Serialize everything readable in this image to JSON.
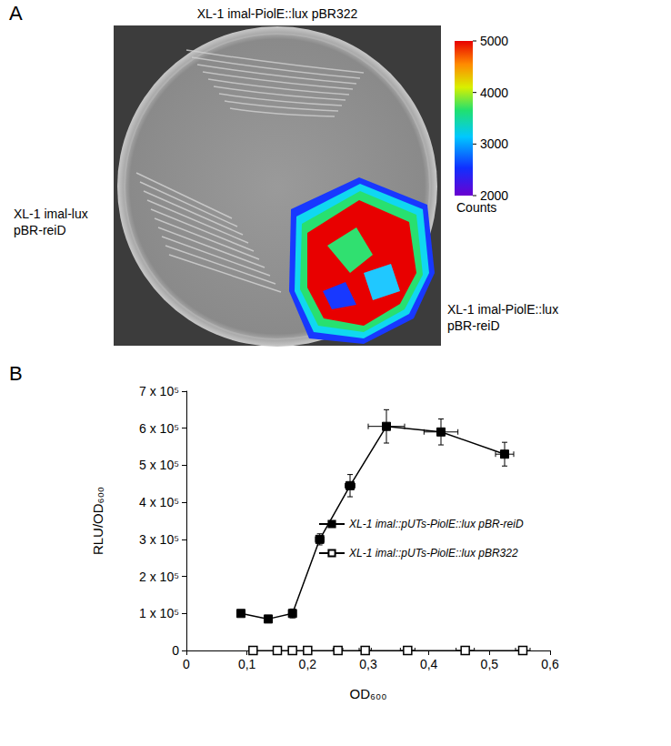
{
  "panel_a": {
    "letter": "A",
    "type": "image",
    "labels": {
      "top": "XL-1 imal-PiolE::lux pBR322",
      "left": "XL-1 imal-lux pBR-reiD",
      "right": "XL-1 imal-PiolE::lux pBR-reiD"
    },
    "colorbar": {
      "title": "Counts",
      "range": [
        2000,
        5000
      ],
      "ticks": [
        2000,
        3000,
        4000,
        5000
      ]
    }
  },
  "chart_data": {
    "panel": "B",
    "type": "line",
    "xlabel": "OD₆₀₀",
    "ylabel": "RLU/OD₆₀₀",
    "xlim": [
      0,
      0.6
    ],
    "xticks": [
      0,
      {
        "value": 0.1,
        "label": "0,1"
      },
      {
        "value": 0.2,
        "label": "0,2"
      },
      {
        "value": 0.3,
        "label": "0,3"
      },
      {
        "value": 0.4,
        "label": "0,4"
      },
      {
        "value": 0.5,
        "label": "0,5"
      },
      {
        "value": 0.6,
        "label": "0,6"
      }
    ],
    "ylim": [
      0,
      700000
    ],
    "yticks": [
      0,
      {
        "value": 100000,
        "label": "1 x 10⁵"
      },
      {
        "value": 200000,
        "label": "2 x 10⁵"
      },
      {
        "value": 300000,
        "label": "3 x 10⁵"
      },
      {
        "value": 400000,
        "label": "4 x 10⁵"
      },
      {
        "value": 500000,
        "label": "5 x 10⁵"
      },
      {
        "value": 600000,
        "label": "6 x 10⁵"
      },
      {
        "value": 700000,
        "label": "7 x 10⁵"
      }
    ],
    "grid": false,
    "legend": "right",
    "series": [
      {
        "name": "XL-1 imal::pUTs-PiolE::lux pBR-reiD",
        "color": "#000000",
        "marker": "square",
        "x": [
          0.09,
          0.135,
          0.175,
          0.22,
          0.27,
          0.33,
          0.42,
          0.525
        ],
        "values": [
          100000,
          85000,
          100000,
          300000,
          445000,
          605000,
          590000,
          530000
        ],
        "x_error": [
          0.005,
          0.006,
          0.006,
          0.007,
          0.008,
          0.03,
          0.028,
          0.015
        ],
        "y_error": [
          5000,
          5000,
          12000,
          15000,
          30000,
          45000,
          35000,
          32000
        ]
      },
      {
        "name": "XL-1 imal::pUTs-PiolE::lux pBR322",
        "color": "#000000",
        "marker": "square_open",
        "x": [
          0.11,
          0.15,
          0.175,
          0.2,
          0.25,
          0.295,
          0.365,
          0.46,
          0.555
        ],
        "values": [
          0,
          0,
          0,
          0,
          0,
          0,
          0,
          0,
          0
        ],
        "x_error": [
          0.005,
          0.005,
          0.006,
          0.006,
          0.008,
          0.01,
          0.012,
          0.015,
          0.012
        ],
        "y_error": [
          0,
          0,
          0,
          0,
          0,
          0,
          0,
          0,
          0
        ]
      }
    ]
  }
}
